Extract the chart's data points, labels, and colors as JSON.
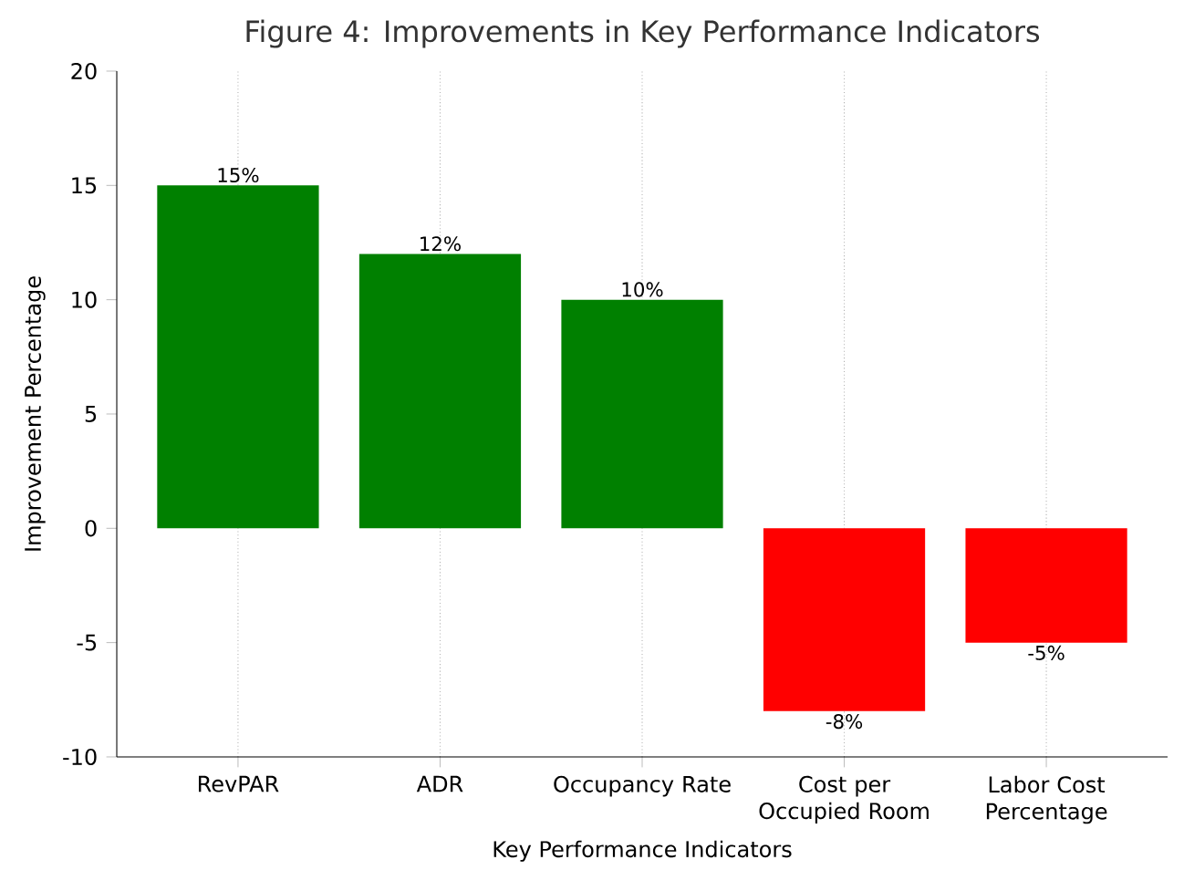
{
  "chart_data": {
    "type": "bar",
    "title": "Figure 4: Improvements in Key Performance Indicators",
    "xlabel": "Key Performance Indicators",
    "ylabel": "Improvement Percentage",
    "categories": [
      "RevPAR",
      "ADR",
      "Occupancy Rate",
      "Cost per Occupied Room",
      "Labor Cost Percentage"
    ],
    "values": [
      15,
      12,
      10,
      -8,
      -5
    ],
    "colors": [
      "#008000",
      "#008000",
      "#008000",
      "#ff0000",
      "#ff0000"
    ],
    "value_labels": [
      "15%",
      "12%",
      "10%",
      "-8%",
      "-5%"
    ],
    "ylim": [
      -10,
      20
    ],
    "yticks": [
      -10,
      -5,
      0,
      5,
      10,
      15,
      20
    ],
    "grid": "x"
  }
}
